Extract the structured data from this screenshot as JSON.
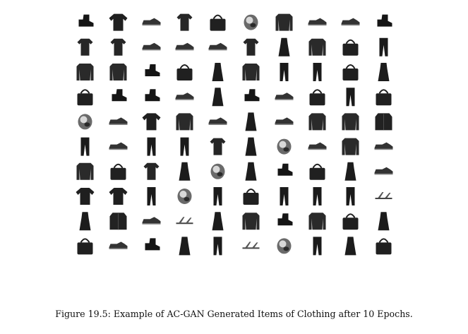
{
  "figure": {
    "caption": "Figure 19.5: Example of AC-GAN Generated Items of Clothing after 10 Epochs.",
    "grid": {
      "rows": 10,
      "cols": 10,
      "items": [
        [
          "boot",
          "shirt",
          "sneaker",
          "top",
          "bag",
          "blurry",
          "pullover",
          "sneaker",
          "sneaker",
          "boot"
        ],
        [
          "top",
          "top",
          "sneaker",
          "sneaker",
          "sneaker",
          "top",
          "dress",
          "pullover",
          "bag",
          "trouser"
        ],
        [
          "pullover",
          "pullover",
          "boot",
          "bag",
          "dress",
          "pullover",
          "trouser",
          "trouser",
          "bag",
          "dress"
        ],
        [
          "bag",
          "boot",
          "boot",
          "sneaker",
          "dress",
          "boot",
          "sneaker",
          "bag",
          "trouser",
          "bag"
        ],
        [
          "blurry",
          "sneaker",
          "shirt",
          "pullover",
          "sneaker",
          "dress",
          "sneaker",
          "pullover",
          "pullover",
          "coat"
        ],
        [
          "trouser",
          "sneaker",
          "trouser",
          "trouser",
          "top",
          "dress",
          "blurry",
          "sneaker",
          "pullover",
          "sneaker"
        ],
        [
          "pullover",
          "bag",
          "top",
          "dress",
          "blurry",
          "dress",
          "boot",
          "bag",
          "dress",
          "sneaker"
        ],
        [
          "shirt",
          "shirt",
          "trouser",
          "blurry",
          "trouser",
          "bag",
          "trouser",
          "trouser",
          "trouser",
          "sandal"
        ],
        [
          "dress",
          "coat",
          "sneaker",
          "sandal",
          "dress",
          "pullover",
          "boot",
          "pullover",
          "bag",
          "dress"
        ],
        [
          "bag",
          "sneaker",
          "boot",
          "dress",
          "trouser",
          "sandal",
          "blurry",
          "trouser",
          "dress",
          "bag"
        ]
      ]
    }
  }
}
